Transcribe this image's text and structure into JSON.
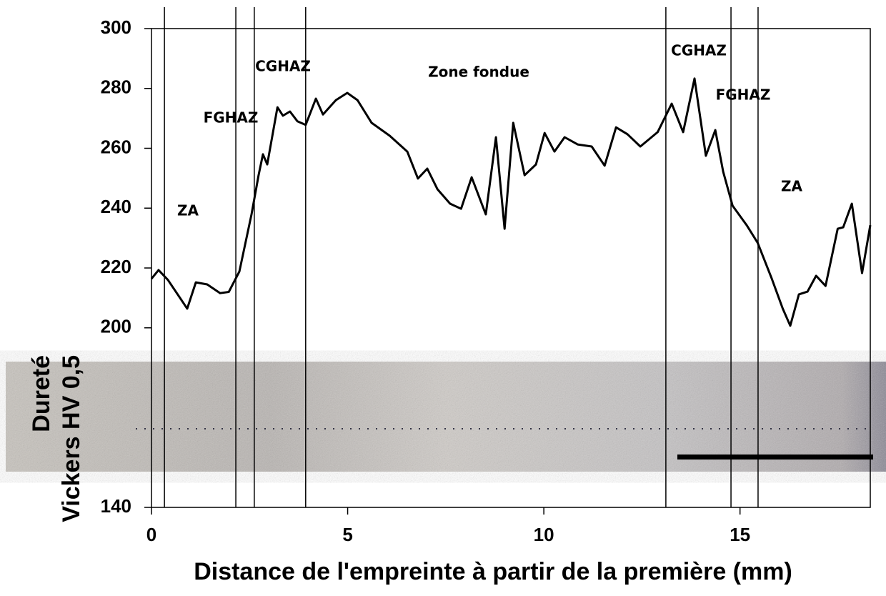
{
  "chart_data": {
    "type": "line",
    "ylabel": [
      "Dureté",
      "Vickers HV 0,5"
    ],
    "xlabel": "Distance de l'empreinte à partir de la première (mm)",
    "xlim": [
      0,
      18.32
    ],
    "xticks": [
      0,
      5,
      10,
      15
    ],
    "ylim": [
      140,
      300
    ],
    "yticks": [
      140,
      200,
      220,
      240,
      260,
      280,
      300
    ],
    "boundaries": [
      0.33,
      2.15,
      2.62,
      3.93,
      13.11,
      14.77,
      15.46
    ],
    "annotations": [
      {
        "text": "ZA"
      },
      {
        "text": "FGHAZ"
      },
      {
        "text": "CGHAZ"
      },
      {
        "text": "Zone fondue"
      },
      {
        "text": "CGHAZ"
      },
      {
        "text": "FGHAZ"
      },
      {
        "text": "ZA"
      }
    ],
    "series": [
      {
        "color": "#000000",
        "x": [
          0,
          0.18,
          0.42,
          0.91,
          1.13,
          1.42,
          1.75,
          1.97,
          2.24,
          2.55,
          2.73,
          2.84,
          2.95,
          3.21,
          3.35,
          3.53,
          3.72,
          3.93,
          4.19,
          4.37,
          4.7,
          4.99,
          5.25,
          5.61,
          6.07,
          6.52,
          6.79,
          7.03,
          7.29,
          7.61,
          7.89,
          8.16,
          8.52,
          8.78,
          9.0,
          9.22,
          9.51,
          9.8,
          10.02,
          10.27,
          10.53,
          10.86,
          11.22,
          11.55,
          11.84,
          12.13,
          12.46,
          12.9,
          13.26,
          13.55,
          13.84,
          14.13,
          14.37,
          14.57,
          14.81,
          15.17,
          15.45,
          15.81,
          16.09,
          16.28,
          16.5,
          16.72,
          16.94,
          17.18,
          17.49,
          17.63,
          17.85,
          18.11,
          18.32
        ],
        "values": [
          216.4,
          219.3,
          216,
          206.4,
          215.2,
          214.5,
          211.6,
          212,
          218.8,
          237.9,
          251,
          258,
          254.6,
          273.7,
          270.9,
          272.3,
          269,
          267.8,
          276.6,
          271.3,
          276.1,
          278.5,
          276.1,
          268.5,
          264.2,
          258.9,
          249.9,
          253.2,
          246.3,
          241.5,
          239.8,
          250.3,
          237.9,
          263.7,
          233.1,
          268.5,
          251,
          254.6,
          265.1,
          258.9,
          263.7,
          261.3,
          260.6,
          254.2,
          267,
          264.7,
          260.6,
          265.4,
          274.9,
          265.4,
          283.3,
          257.5,
          266.1,
          252.2,
          240.8,
          234.3,
          228.4,
          216.4,
          206.4,
          200.7,
          211.2,
          212.1,
          217.4,
          214,
          233.1,
          233.6,
          241.5,
          218.3,
          234.3
        ]
      }
    ]
  }
}
